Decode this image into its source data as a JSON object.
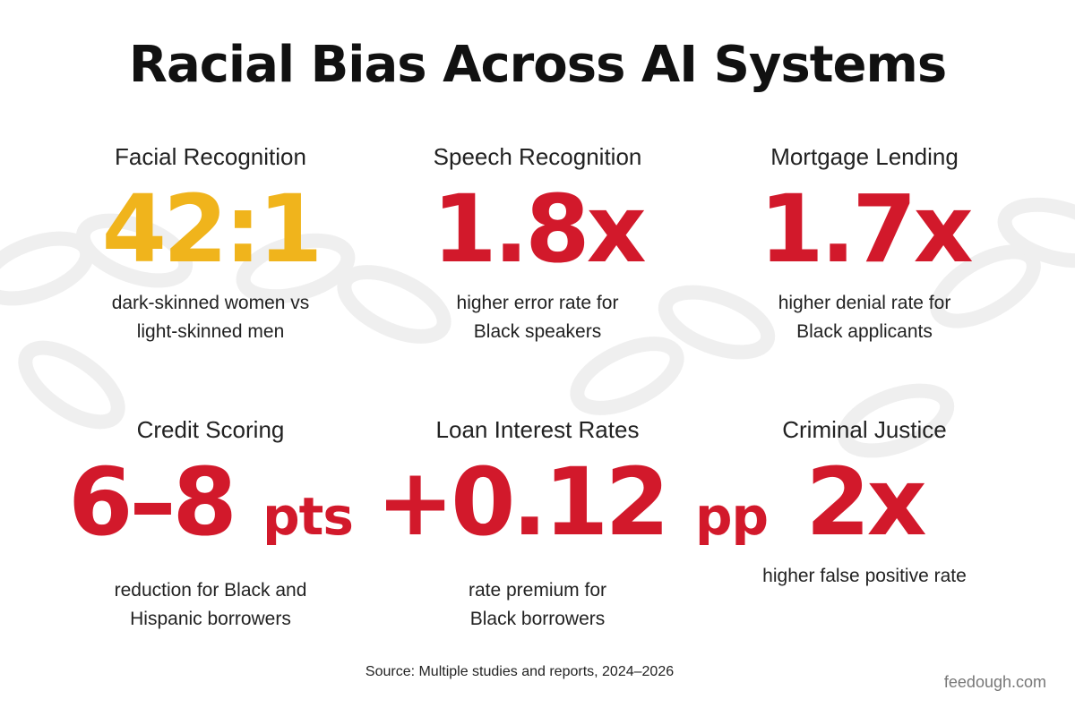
{
  "title": "Racial Bias Across AI Systems",
  "stats": [
    {
      "label": "Facial Recognition",
      "value": "42:1",
      "unit": "",
      "desc_line1": "dark-skinned women vs",
      "desc_line2": "light-skinned men",
      "color": "#f0b41c"
    },
    {
      "label": "Speech Recognition",
      "value": "1.8x",
      "unit": "",
      "desc_line1": "higher error rate for",
      "desc_line2": "Black speakers",
      "color": "#d2192b"
    },
    {
      "label": "Mortgage Lending",
      "value": "1.7x",
      "unit": "",
      "desc_line1": "higher denial rate for",
      "desc_line2": "Black applicants",
      "color": "#d2192b"
    },
    {
      "label": "Credit Scoring",
      "value": "6–8",
      "unit": "pts",
      "desc_line1": "reduction for Black and",
      "desc_line2": "Hispanic borrowers",
      "color": "#d2192b"
    },
    {
      "label": "Loan Interest Rates",
      "value": "+0.12",
      "unit": "pp",
      "desc_line1": "rate premium for",
      "desc_line2": "Black borrowers",
      "color": "#d2192b"
    },
    {
      "label": "Criminal Justice",
      "value": "2x",
      "unit": "",
      "desc_line1": "higher false positive rate",
      "desc_line2": "",
      "color": "#d2192b"
    }
  ],
  "source": "Source: Multiple studies and reports, 2024–2026",
  "watermark": "feedough.com"
}
